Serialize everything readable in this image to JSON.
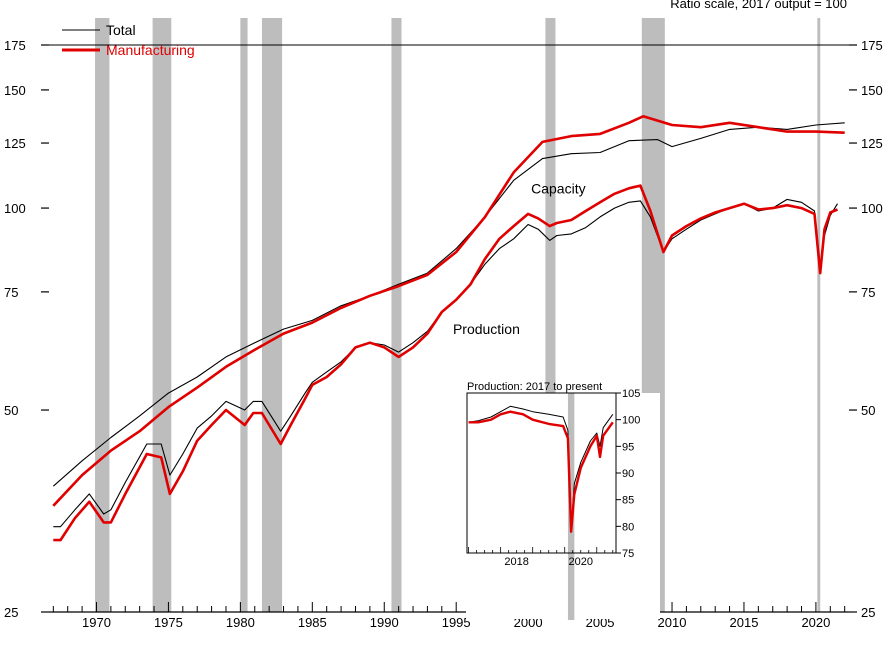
{
  "chart_data": {
    "type": "line",
    "title": "",
    "subtitle": "Ratio scale, 2017 output = 100",
    "xlabel": "",
    "ylabel": "",
    "y_scale": "log",
    "ylim": [
      25,
      175
    ],
    "xlim": [
      1966.7,
      2022.3
    ],
    "y_ticks": [
      25,
      50,
      75,
      100,
      125,
      150,
      175
    ],
    "x_ticks": [
      1970,
      1975,
      1980,
      1985,
      1990,
      1995,
      2000,
      2005,
      2010,
      2015,
      2020
    ],
    "legend": {
      "placement": "top-left",
      "entries": [
        {
          "name": "Total",
          "color": "#000000"
        },
        {
          "name": "Manufacturing",
          "color": "#e00000"
        }
      ]
    },
    "annotations": [
      {
        "text": "Capacity",
        "x": 2002.1,
        "y": 107
      },
      {
        "text": "Production",
        "x": 1997.1,
        "y": 66
      }
    ],
    "recessions": [
      [
        1969.9,
        1970.9
      ],
      [
        1973.9,
        1975.2
      ],
      [
        1980.0,
        1980.5
      ],
      [
        1981.5,
        1982.9
      ],
      [
        1990.5,
        1991.2
      ],
      [
        2001.2,
        2001.9
      ],
      [
        2007.9,
        2009.5
      ],
      [
        2020.1,
        2020.3
      ]
    ],
    "series": [
      {
        "name": "Total",
        "measure": "Capacity",
        "color": "#000000",
        "x": [
          1967,
          1969,
          1971,
          1973,
          1975,
          1977,
          1979,
          1981,
          1983,
          1985,
          1987,
          1989,
          1991,
          1993,
          1995,
          1997,
          1999,
          2001,
          2003,
          2005,
          2007,
          2009,
          2010,
          2012,
          2014,
          2016,
          2018,
          2020,
          2022
        ],
        "values": [
          38.5,
          42,
          45.5,
          49,
          53,
          56,
          60,
          63,
          66,
          68,
          71.5,
          74,
          77,
          80,
          87,
          97,
          110,
          118.5,
          120.5,
          121,
          126,
          126.5,
          123.5,
          127,
          131,
          132,
          131,
          133,
          134
        ]
      },
      {
        "name": "Manufacturing",
        "measure": "Capacity",
        "color": "#e00000",
        "x": [
          1967,
          1969,
          1971,
          1973,
          1975,
          1977,
          1979,
          1981,
          1983,
          1985,
          1987,
          1989,
          1991,
          1993,
          1995,
          1997,
          1999,
          2001,
          2003,
          2005,
          2007,
          2008,
          2010,
          2012,
          2014,
          2016,
          2018,
          2020,
          2022
        ],
        "values": [
          36,
          40,
          43.5,
          46.5,
          50.5,
          54,
          58,
          61.5,
          65,
          67.5,
          71,
          74,
          76.5,
          79.5,
          86,
          97,
          113,
          125.5,
          128,
          129,
          134,
          137,
          133,
          132,
          134,
          132,
          130,
          130,
          129.5
        ]
      },
      {
        "name": "Total",
        "measure": "Production",
        "color": "#000000",
        "x": [
          1967,
          1967.5,
          1968.5,
          1969.5,
          1970.5,
          1971,
          1972,
          1973.5,
          1974.5,
          1975.1,
          1976,
          1977,
          1978,
          1979,
          1980.3,
          1980.9,
          1981.5,
          1982.8,
          1983.5,
          1984.5,
          1985,
          1986,
          1987,
          1988,
          1989,
          1990,
          1991,
          1992,
          1993,
          1994,
          1995,
          1996,
          1997,
          1998,
          1999,
          2000,
          2000.7,
          2001.5,
          2002,
          2003,
          2004,
          2005,
          2006,
          2007,
          2007.8,
          2008.5,
          2009.4,
          2010,
          2011,
          2012,
          2013,
          2014,
          2015,
          2016,
          2017,
          2018,
          2019,
          2019.9,
          2020.3,
          2020.6,
          2021,
          2021.5
        ],
        "values": [
          33.5,
          33.5,
          35.5,
          37.5,
          35,
          35.5,
          39,
          44.5,
          44.5,
          40,
          43,
          47,
          49,
          51.5,
          50,
          51.5,
          51.5,
          46.5,
          49,
          53,
          55,
          57,
          59,
          62,
          63,
          62.5,
          61,
          63,
          65.5,
          70,
          73,
          77,
          82.5,
          87,
          90,
          94.5,
          93,
          89.5,
          91,
          91.5,
          93.5,
          97,
          100,
          102,
          102.5,
          97,
          86,
          90,
          93,
          96,
          98,
          100,
          101.5,
          99,
          100,
          103,
          102,
          99,
          82,
          91,
          97.5,
          101.5
        ]
      },
      {
        "name": "Manufacturing",
        "measure": "Production",
        "color": "#e00000",
        "x": [
          1967,
          1967.5,
          1968.5,
          1969.5,
          1970.5,
          1971,
          1972,
          1973.5,
          1974.5,
          1975.1,
          1976,
          1977,
          1978,
          1979,
          1980.3,
          1980.9,
          1981.5,
          1982.8,
          1983.5,
          1984.5,
          1985,
          1986,
          1987,
          1988,
          1989,
          1990,
          1991,
          1992,
          1993,
          1994,
          1995,
          1996,
          1997,
          1998,
          1999,
          2000,
          2000.7,
          2001.5,
          2002,
          2003,
          2004,
          2005,
          2006,
          2007,
          2007.8,
          2008.5,
          2009.4,
          2010,
          2011,
          2012,
          2013,
          2014,
          2015,
          2016,
          2017,
          2018,
          2019,
          2019.9,
          2020.3,
          2020.6,
          2021,
          2021.5
        ],
        "values": [
          32,
          32,
          34.5,
          36.5,
          34,
          34,
          37.5,
          43,
          42.5,
          37.5,
          40.5,
          45,
          47.5,
          50,
          47.5,
          49.5,
          49.5,
          44.5,
          47.5,
          52,
          54.5,
          56,
          58.5,
          62,
          63,
          62,
          60,
          62,
          65,
          70,
          73,
          77,
          84,
          90,
          94,
          98,
          96.5,
          94,
          95,
          96,
          99,
          102,
          105,
          107,
          108,
          99,
          86,
          91,
          94,
          96.5,
          98.5,
          100,
          101.5,
          99.5,
          100,
          101,
          100,
          98,
          80,
          93,
          98.5,
          99.5
        ]
      }
    ]
  },
  "inset": {
    "title": "Production: 2017 to present",
    "ylim": [
      75,
      105
    ],
    "xlim": [
      2016.95,
      2021.6
    ],
    "y_ticks": [
      75,
      80,
      85,
      90,
      95,
      100,
      105
    ],
    "x_ticks": [
      2018,
      2020
    ],
    "recessions": [
      [
        2020.1,
        2020.3
      ]
    ],
    "series": [
      {
        "name": "Total",
        "color": "#000000",
        "x": [
          2017,
          2017.3,
          2017.7,
          2018,
          2018.3,
          2018.7,
          2019,
          2019.5,
          2019.95,
          2020.1,
          2020.2,
          2020.3,
          2020.5,
          2020.8,
          2021,
          2021.1,
          2021.2,
          2021.5
        ],
        "values": [
          99.5,
          99.8,
          100.5,
          101.5,
          102.5,
          102,
          101.5,
          101,
          100.5,
          98,
          79,
          88,
          92,
          96,
          97.5,
          95,
          98.5,
          101
        ]
      },
      {
        "name": "Manufacturing",
        "color": "#e00000",
        "x": [
          2017,
          2017.3,
          2017.7,
          2018,
          2018.3,
          2018.7,
          2019,
          2019.5,
          2019.95,
          2020.1,
          2020.2,
          2020.3,
          2020.5,
          2020.8,
          2021,
          2021.1,
          2021.2,
          2021.5
        ],
        "values": [
          99.5,
          99.5,
          100,
          101,
          101.5,
          101,
          100,
          99.2,
          98.8,
          96.5,
          79,
          86,
          91,
          95,
          97,
          93,
          97,
          99.5
        ]
      }
    ]
  }
}
